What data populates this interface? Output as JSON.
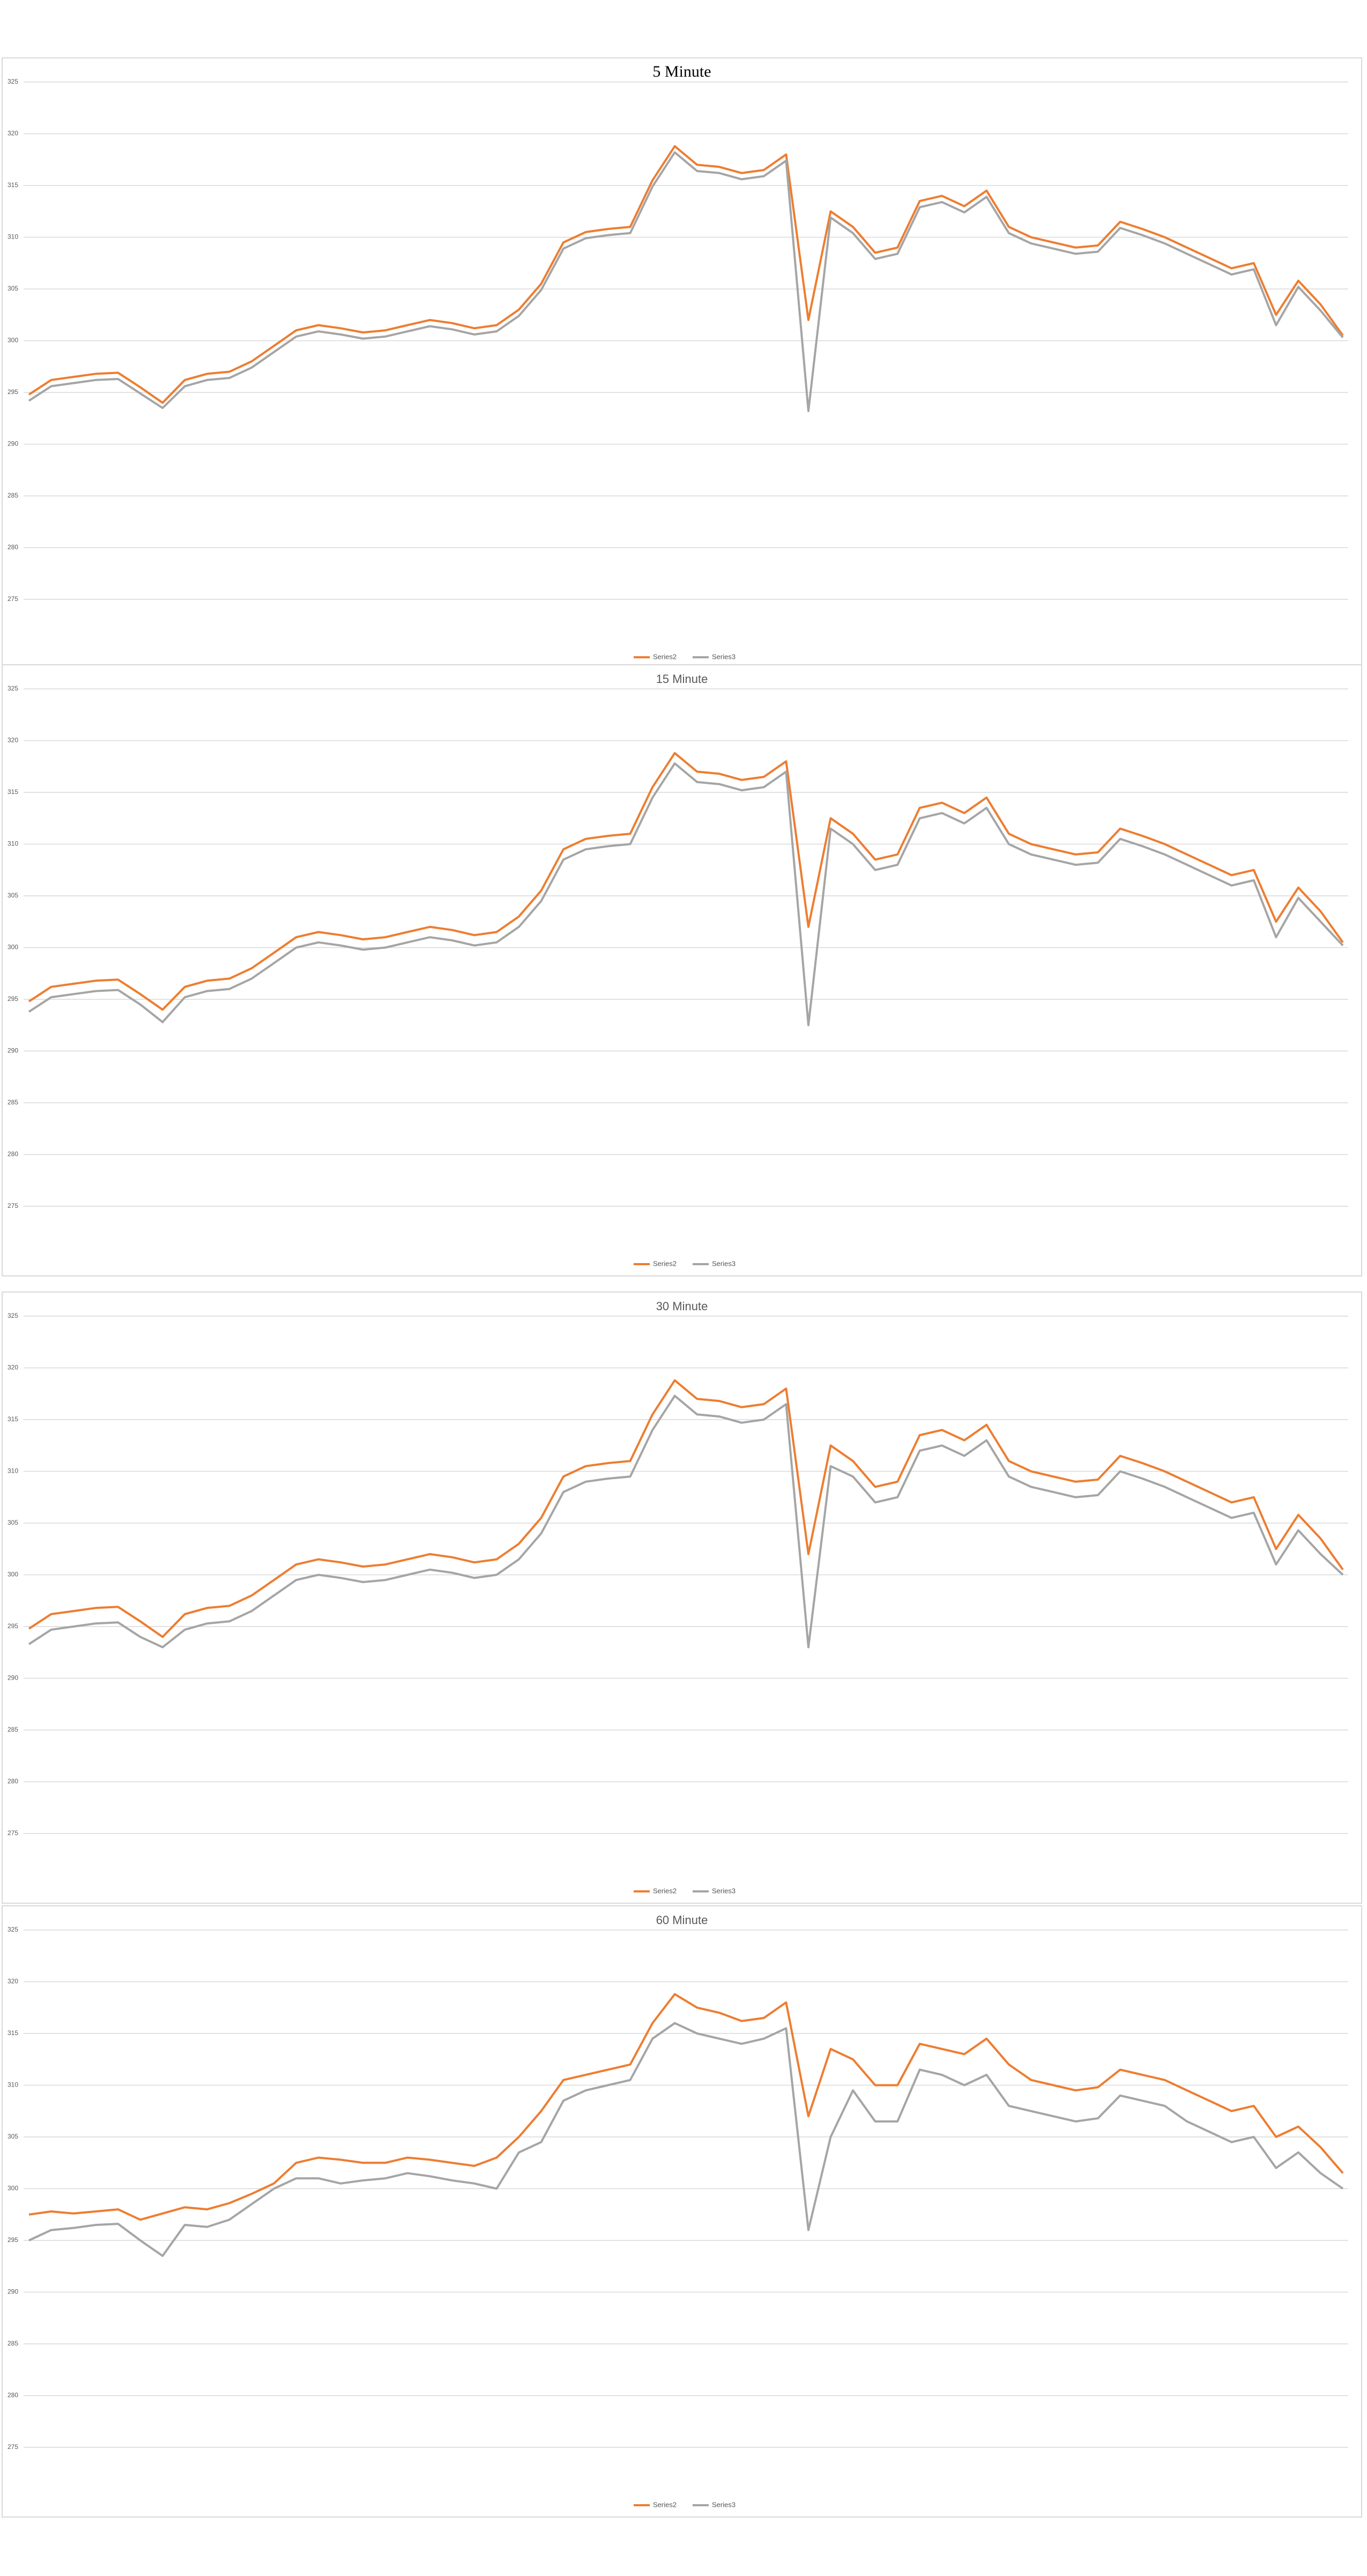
{
  "chart_data": [
    {
      "type": "line",
      "title": "5 Minute",
      "ylim": [
        275,
        325
      ],
      "yticks": [
        275,
        280,
        285,
        290,
        295,
        300,
        305,
        310,
        315,
        320,
        325
      ],
      "grid": true,
      "legend": "bottom",
      "series": [
        {
          "name": "Series2",
          "color": "#ed7d31",
          "values": [
            294.8,
            296.2,
            296.5,
            296.8,
            296.9,
            295.5,
            294.0,
            296.2,
            296.8,
            297.0,
            298.0,
            299.5,
            301.0,
            301.5,
            301.2,
            300.8,
            301.0,
            301.5,
            302.0,
            301.7,
            301.2,
            301.5,
            303.0,
            305.5,
            309.5,
            310.5,
            310.8,
            311.0,
            315.5,
            318.8,
            317.0,
            316.8,
            316.2,
            316.5,
            318.0,
            302.0,
            312.5,
            311.0,
            308.5,
            309.0,
            313.5,
            314.0,
            313.0,
            314.5,
            311.0,
            310.0,
            309.5,
            309.0,
            309.2,
            311.5,
            310.8,
            310.0,
            309.0,
            308.0,
            307.0,
            307.5,
            302.5,
            305.8,
            303.5,
            300.5
          ]
        },
        {
          "name": "Series3",
          "color": "#a5a5a5",
          "values": [
            294.2,
            295.6,
            295.9,
            296.2,
            296.3,
            294.9,
            293.5,
            295.6,
            296.2,
            296.4,
            297.4,
            298.9,
            300.4,
            300.9,
            300.6,
            300.2,
            300.4,
            300.9,
            301.4,
            301.1,
            300.6,
            300.9,
            302.4,
            304.9,
            308.9,
            309.9,
            310.2,
            310.4,
            314.9,
            318.2,
            316.4,
            316.2,
            315.6,
            315.9,
            317.4,
            293.2,
            311.9,
            310.4,
            307.9,
            308.4,
            312.9,
            313.4,
            312.4,
            313.9,
            310.4,
            309.4,
            308.9,
            308.4,
            308.6,
            310.9,
            310.2,
            309.4,
            308.4,
            307.4,
            306.4,
            306.9,
            301.5,
            305.2,
            302.9,
            300.3
          ]
        }
      ]
    },
    {
      "type": "line",
      "title": "15 Minute",
      "ylim": [
        275,
        325
      ],
      "yticks": [
        275,
        280,
        285,
        290,
        295,
        300,
        305,
        310,
        315,
        320,
        325
      ],
      "grid": true,
      "legend": "bottom",
      "series": [
        {
          "name": "Series2",
          "color": "#ed7d31",
          "values": [
            294.8,
            296.2,
            296.5,
            296.8,
            296.9,
            295.5,
            294.0,
            296.2,
            296.8,
            297.0,
            298.0,
            299.5,
            301.0,
            301.5,
            301.2,
            300.8,
            301.0,
            301.5,
            302.0,
            301.7,
            301.2,
            301.5,
            303.0,
            305.5,
            309.5,
            310.5,
            310.8,
            311.0,
            315.5,
            318.8,
            317.0,
            316.8,
            316.2,
            316.5,
            318.0,
            302.0,
            312.5,
            311.0,
            308.5,
            309.0,
            313.5,
            314.0,
            313.0,
            314.5,
            311.0,
            310.0,
            309.5,
            309.0,
            309.2,
            311.5,
            310.8,
            310.0,
            309.0,
            308.0,
            307.0,
            307.5,
            302.5,
            305.8,
            303.5,
            300.5
          ]
        },
        {
          "name": "Series3",
          "color": "#a5a5a5",
          "values": [
            293.8,
            295.2,
            295.5,
            295.8,
            295.9,
            294.5,
            292.8,
            295.2,
            295.8,
            296.0,
            297.0,
            298.5,
            300.0,
            300.5,
            300.2,
            299.8,
            300.0,
            300.5,
            301.0,
            300.7,
            300.2,
            300.5,
            302.0,
            304.5,
            308.5,
            309.5,
            309.8,
            310.0,
            314.5,
            317.8,
            316.0,
            315.8,
            315.2,
            315.5,
            317.0,
            292.5,
            311.5,
            310.0,
            307.5,
            308.0,
            312.5,
            313.0,
            312.0,
            313.5,
            310.0,
            309.0,
            308.5,
            308.0,
            308.2,
            310.5,
            309.8,
            309.0,
            308.0,
            307.0,
            306.0,
            306.5,
            301.0,
            304.8,
            302.5,
            300.2
          ]
        }
      ]
    },
    {
      "type": "line",
      "title": "30 Minute",
      "ylim": [
        275,
        325
      ],
      "yticks": [
        275,
        280,
        285,
        290,
        295,
        300,
        305,
        310,
        315,
        320,
        325
      ],
      "grid": true,
      "legend": "bottom",
      "series": [
        {
          "name": "Series2",
          "color": "#ed7d31",
          "values": [
            294.8,
            296.2,
            296.5,
            296.8,
            296.9,
            295.5,
            294.0,
            296.2,
            296.8,
            297.0,
            298.0,
            299.5,
            301.0,
            301.5,
            301.2,
            300.8,
            301.0,
            301.5,
            302.0,
            301.7,
            301.2,
            301.5,
            303.0,
            305.5,
            309.5,
            310.5,
            310.8,
            311.0,
            315.5,
            318.8,
            317.0,
            316.8,
            316.2,
            316.5,
            318.0,
            302.0,
            312.5,
            311.0,
            308.5,
            309.0,
            313.5,
            314.0,
            313.0,
            314.5,
            311.0,
            310.0,
            309.5,
            309.0,
            309.2,
            311.5,
            310.8,
            310.0,
            309.0,
            308.0,
            307.0,
            307.5,
            302.5,
            305.8,
            303.5,
            300.5
          ]
        },
        {
          "name": "Series3",
          "color": "#a5a5a5",
          "values": [
            293.3,
            294.7,
            295.0,
            295.3,
            295.4,
            294.0,
            293.0,
            294.7,
            295.3,
            295.5,
            296.5,
            298.0,
            299.5,
            300.0,
            299.7,
            299.3,
            299.5,
            300.0,
            300.5,
            300.2,
            299.7,
            300.0,
            301.5,
            304.0,
            308.0,
            309.0,
            309.3,
            309.5,
            314.0,
            317.3,
            315.5,
            315.3,
            314.7,
            315.0,
            316.5,
            293.0,
            310.5,
            309.5,
            307.0,
            307.5,
            312.0,
            312.5,
            311.5,
            313.0,
            309.5,
            308.5,
            308.0,
            307.5,
            307.7,
            310.0,
            309.3,
            308.5,
            307.5,
            306.5,
            305.5,
            306.0,
            301.0,
            304.3,
            302.0,
            300.0
          ]
        }
      ]
    },
    {
      "type": "line",
      "title": "60 Minute",
      "ylim": [
        275,
        325
      ],
      "yticks": [
        275,
        280,
        285,
        290,
        295,
        300,
        305,
        310,
        315,
        320,
        325
      ],
      "grid": true,
      "legend": "bottom",
      "series": [
        {
          "name": "Series2",
          "color": "#ed7d31",
          "values": [
            297.5,
            297.8,
            297.6,
            297.8,
            298.0,
            297.0,
            297.6,
            298.2,
            298.0,
            298.6,
            299.5,
            300.5,
            302.5,
            303.0,
            302.8,
            302.5,
            302.5,
            303.0,
            302.8,
            302.5,
            302.2,
            303.0,
            305.0,
            307.5,
            310.5,
            311.0,
            311.5,
            312.0,
            316.0,
            318.8,
            317.5,
            317.0,
            316.2,
            316.5,
            318.0,
            307.0,
            313.5,
            312.5,
            310.0,
            310.0,
            314.0,
            313.5,
            313.0,
            314.5,
            312.0,
            310.5,
            310.0,
            309.5,
            309.8,
            311.5,
            311.0,
            310.5,
            309.5,
            308.5,
            307.5,
            308.0,
            305.0,
            306.0,
            304.0,
            301.5
          ]
        },
        {
          "name": "Series3",
          "color": "#a5a5a5",
          "values": [
            295.0,
            296.0,
            296.2,
            296.5,
            296.6,
            295.0,
            293.5,
            296.5,
            296.3,
            297.0,
            298.5,
            300.0,
            301.0,
            301.0,
            300.5,
            300.8,
            301.0,
            301.5,
            301.2,
            300.8,
            300.5,
            300.0,
            303.5,
            304.5,
            308.5,
            309.5,
            310.0,
            310.5,
            314.5,
            316.0,
            315.0,
            314.5,
            314.0,
            314.5,
            315.5,
            296.0,
            305.0,
            309.5,
            306.5,
            306.5,
            311.5,
            311.0,
            310.0,
            311.0,
            308.0,
            307.5,
            307.0,
            306.5,
            306.8,
            309.0,
            308.5,
            308.0,
            306.5,
            305.5,
            304.5,
            305.0,
            302.0,
            303.5,
            301.5,
            300.0
          ]
        }
      ]
    }
  ]
}
